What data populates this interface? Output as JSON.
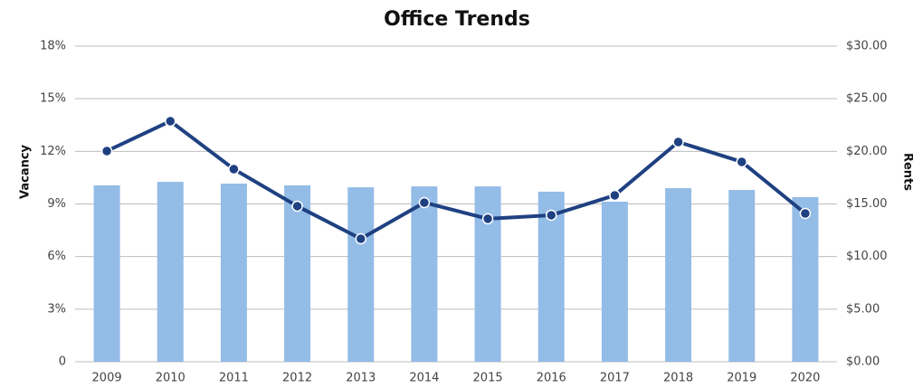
{
  "chart_data": {
    "type": "bar-line",
    "title": "Office Trends",
    "ylabel": "Vacancy",
    "y2label": "Rents",
    "categories": [
      "2009",
      "2010",
      "2011",
      "2012",
      "2013",
      "2014",
      "2015",
      "2016",
      "2017",
      "2018",
      "2019",
      "2020"
    ],
    "series": [
      {
        "type": "bar",
        "color": "#93bce6",
        "axis": "y",
        "values": [
          10.06,
          10.26,
          10.16,
          10.06,
          9.95,
          10.0,
          10.0,
          9.7,
          9.13,
          9.9,
          9.8,
          9.39
        ]
      },
      {
        "type": "line",
        "color": "#1f4182",
        "axis": "y2",
        "values": [
          20.03,
          22.87,
          18.31,
          14.79,
          11.69,
          15.13,
          13.59,
          13.93,
          15.82,
          20.89,
          19.0,
          14.1
        ]
      }
    ],
    "ylim": [
      0,
      18
    ],
    "yticks": [
      0,
      {
        "value": 3,
        "label": "3%"
      },
      {
        "value": 6,
        "label": "6%"
      },
      {
        "value": 9,
        "label": "9%"
      },
      {
        "value": 12,
        "label": "12%"
      },
      {
        "value": 15,
        "label": "15%"
      },
      {
        "value": 18,
        "label": "18%"
      }
    ],
    "y2lim": [
      0,
      30
    ],
    "y2ticks": [
      {
        "value": 0,
        "label": "$0.00"
      },
      {
        "value": 5,
        "label": "$5.00"
      },
      {
        "value": 10,
        "label": "$10.00"
      },
      {
        "value": 15,
        "label": "$15.00"
      },
      {
        "value": 20,
        "label": "$20.00"
      },
      {
        "value": 25,
        "label": "$25.00"
      },
      {
        "value": 30,
        "label": "$30.00"
      }
    ],
    "grid": true
  }
}
